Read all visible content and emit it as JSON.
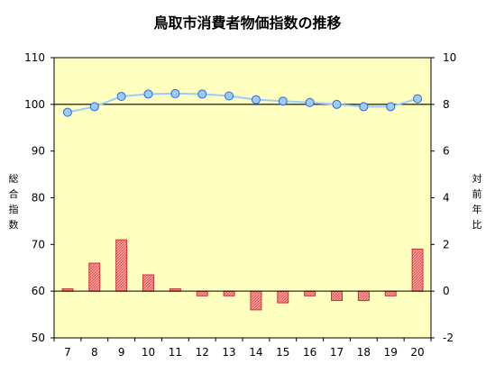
{
  "chart_data": {
    "type": "bar+line",
    "title": "鳥取市消費者物価指数の推移",
    "categories": [
      "7",
      "8",
      "9",
      "10",
      "11",
      "12",
      "13",
      "14",
      "15",
      "16",
      "17",
      "18",
      "19",
      "20"
    ],
    "left_axis": {
      "label": "総合指数",
      "range": [
        50,
        110
      ],
      "ticks": [
        50,
        60,
        70,
        80,
        90,
        100,
        110
      ],
      "reference_line": 100
    },
    "right_axis": {
      "label": "対前年比",
      "range": [
        -2,
        10
      ],
      "ticks": [
        -2,
        0,
        2,
        4,
        6,
        8,
        10
      ]
    },
    "series": [
      {
        "kind": "line",
        "axis": "left",
        "values": [
          98.3,
          99.5,
          101.7,
          102.2,
          102.3,
          102.2,
          101.8,
          101.0,
          100.7,
          100.4,
          100.0,
          99.5,
          99.5,
          101.2
        ]
      },
      {
        "kind": "bar",
        "axis": "right",
        "values": [
          0.1,
          1.2,
          2.2,
          0.7,
          0.1,
          -0.2,
          -0.2,
          -0.8,
          -0.5,
          -0.2,
          -0.4,
          -0.4,
          -0.2,
          1.8
        ]
      }
    ],
    "colors": {
      "plot_bg": "#ffffc0",
      "line": "#99ccff",
      "marker": "#99ccff",
      "bar_fill": "#ff9999",
      "bar_stroke": "#cc3333"
    }
  }
}
